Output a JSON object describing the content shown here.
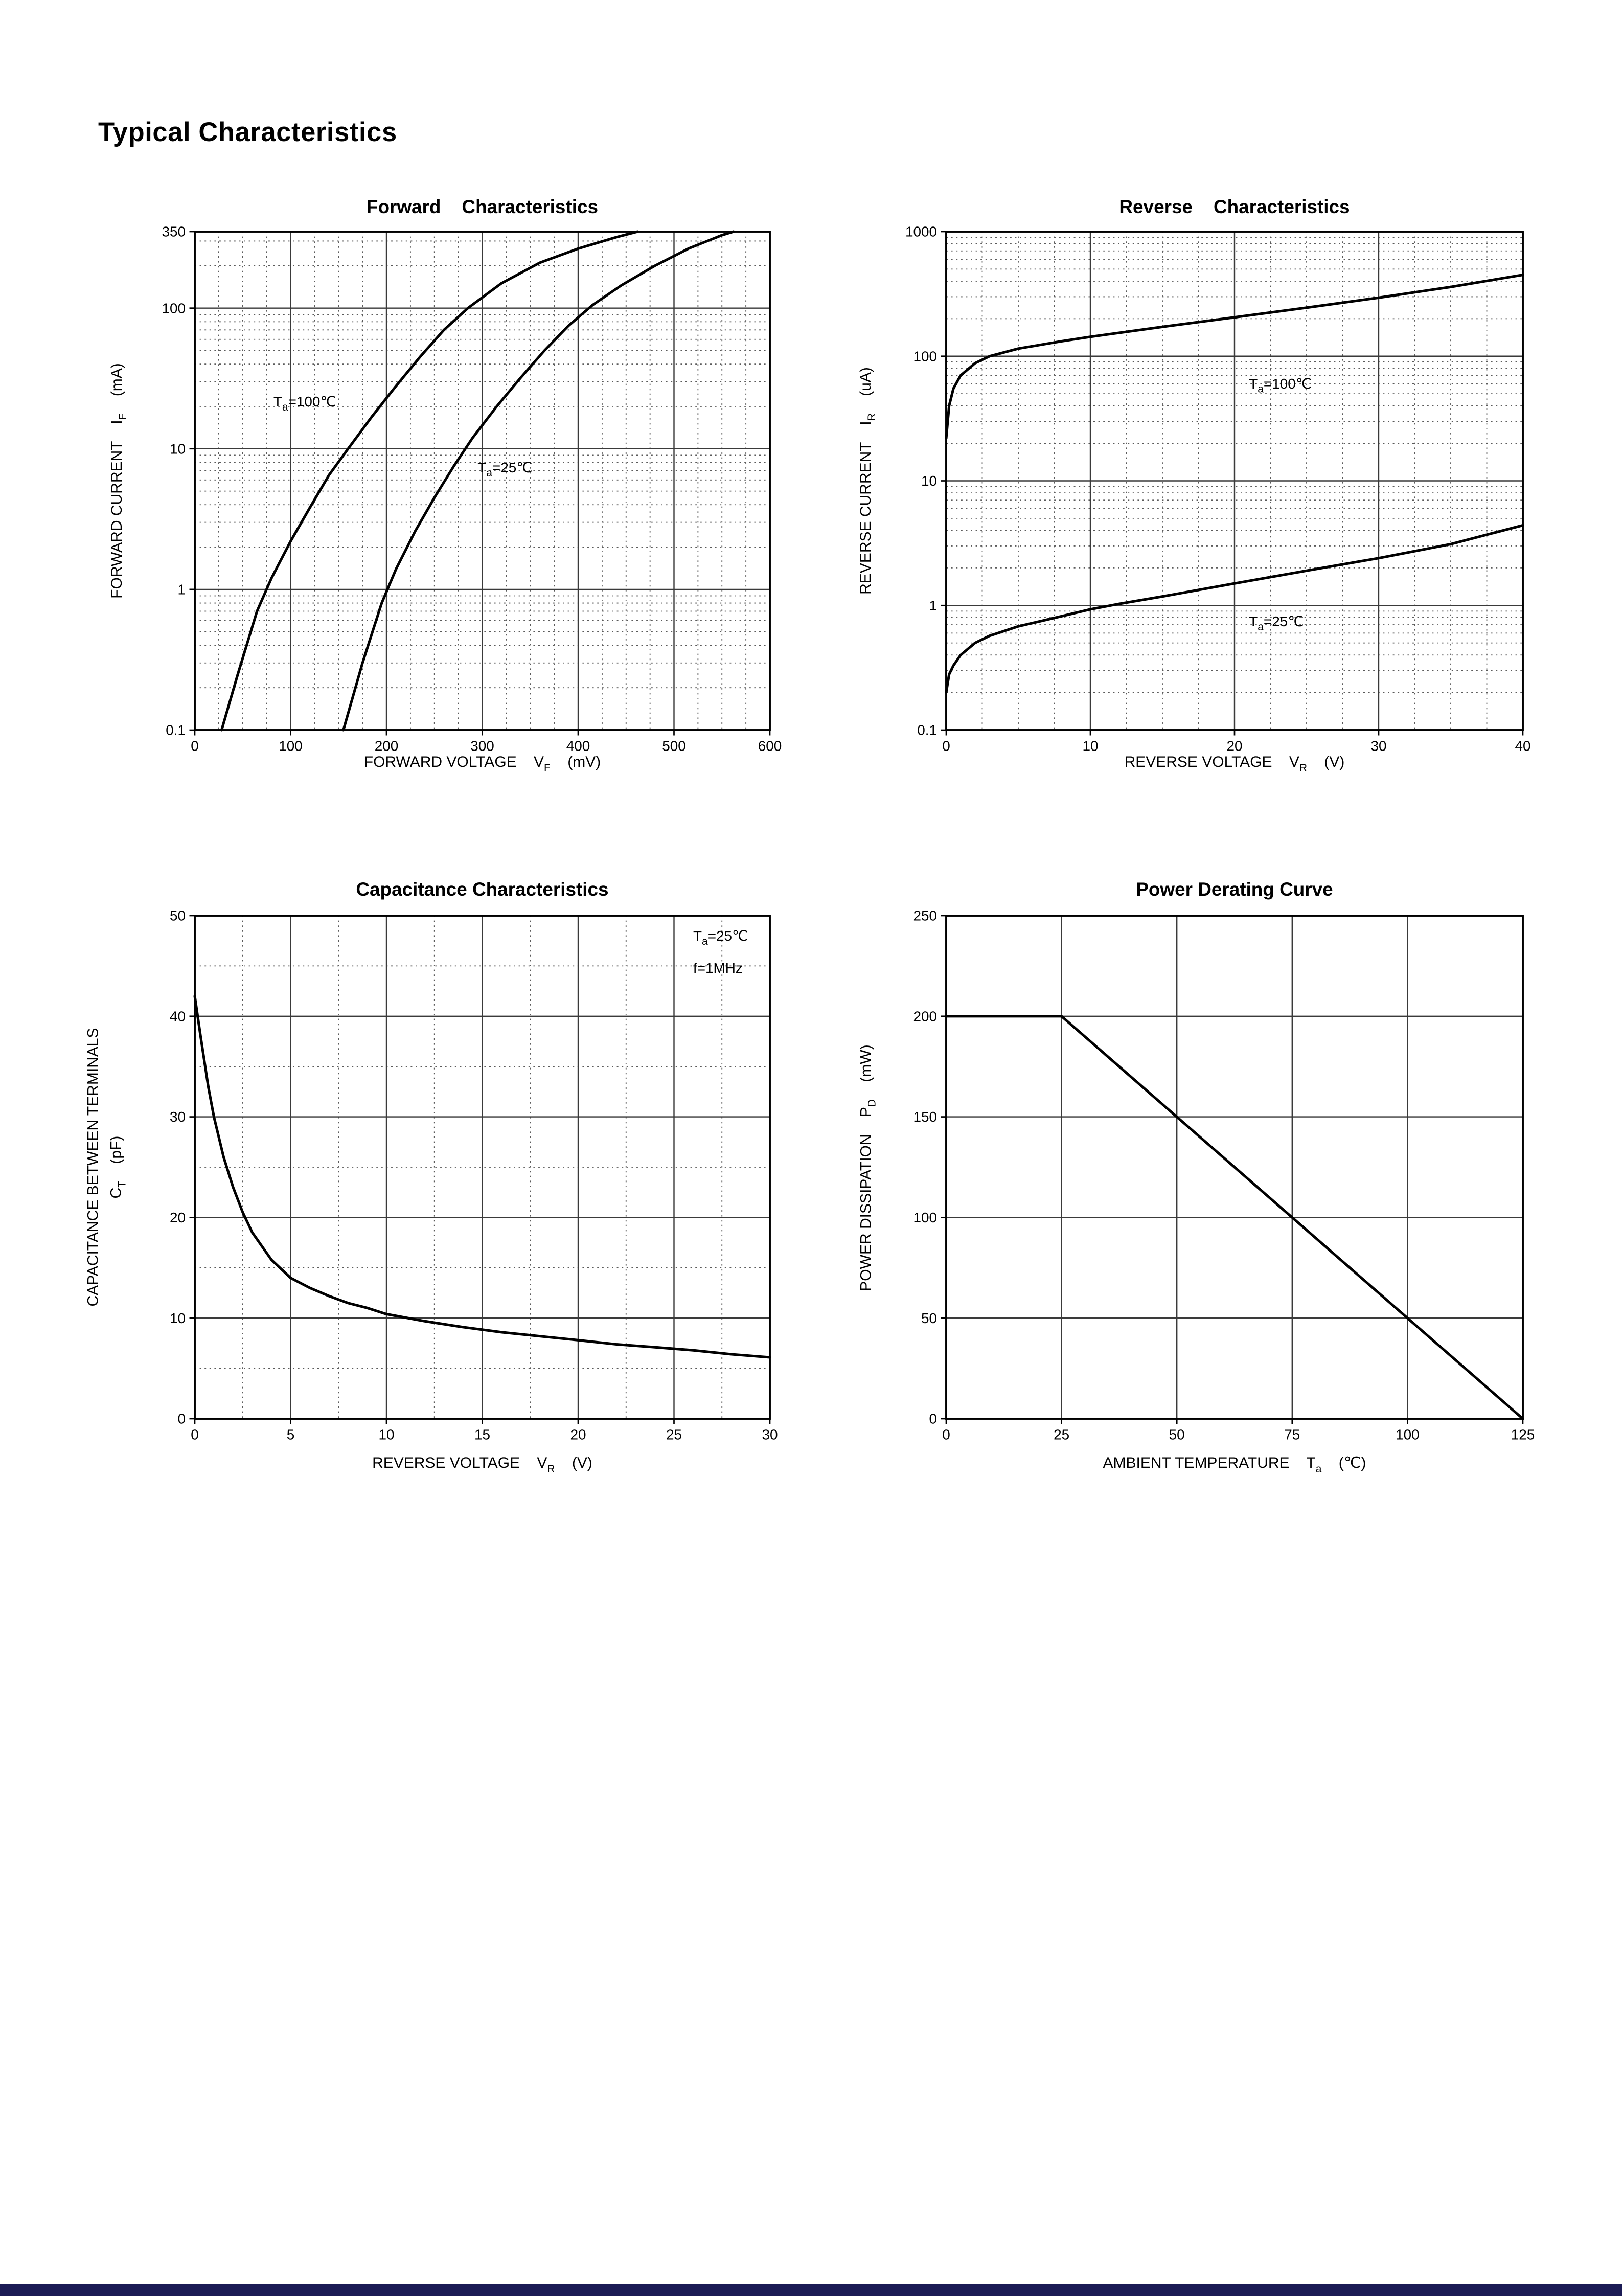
{
  "page": {
    "title": "Typical Characteristics"
  },
  "footer": {
    "bar_color": "#1b1b55"
  },
  "colors": {
    "curve": "#000000",
    "grid_major": "#3a3a3a",
    "grid_minor": "#5a5a5a",
    "border": "#000000"
  },
  "chart_data": [
    {
      "id": "forward-characteristics",
      "type": "line",
      "title": "Forward    Characteristics",
      "x": {
        "min": 0,
        "max": 600,
        "ticks": [
          0,
          100,
          200,
          300,
          400,
          500,
          600
        ],
        "minor_step": 25,
        "scale": "linear"
      },
      "y": {
        "min": 0.1,
        "max": 350,
        "ticks": [
          0.1,
          1,
          10,
          100,
          350
        ],
        "scale": "log"
      },
      "xlabel": [
        {
          "t": "FORWARD VOLTAGE    V"
        },
        {
          "t": "F",
          "sub": true
        },
        {
          "t": "    (mV)"
        }
      ],
      "ylabel": [
        {
          "t": "FORWARD CURRENT    I"
        },
        {
          "t": "F",
          "sub": true
        },
        {
          "t": "    (mA)"
        }
      ],
      "series": [
        {
          "name": "Ta=100C",
          "points": [
            [
              28,
              0.1
            ],
            [
              45,
              0.25
            ],
            [
              65,
              0.7
            ],
            [
              80,
              1.2
            ],
            [
              100,
              2.2
            ],
            [
              120,
              3.8
            ],
            [
              140,
              6.5
            ],
            [
              160,
              10
            ],
            [
              185,
              17
            ],
            [
              210,
              28
            ],
            [
              235,
              45
            ],
            [
              260,
              70
            ],
            [
              285,
              100
            ],
            [
              320,
              150
            ],
            [
              360,
              210
            ],
            [
              400,
              265
            ],
            [
              440,
              320
            ],
            [
              462,
              350
            ]
          ]
        },
        {
          "name": "Ta=25C",
          "points": [
            [
              155,
              0.1
            ],
            [
              175,
              0.3
            ],
            [
              195,
              0.8
            ],
            [
              210,
              1.4
            ],
            [
              230,
              2.6
            ],
            [
              250,
              4.5
            ],
            [
              270,
              7.5
            ],
            [
              290,
              12
            ],
            [
              315,
              20
            ],
            [
              340,
              32
            ],
            [
              365,
              50
            ],
            [
              390,
              75
            ],
            [
              415,
              105
            ],
            [
              445,
              145
            ],
            [
              480,
              200
            ],
            [
              515,
              265
            ],
            [
              550,
              330
            ],
            [
              562,
              350
            ]
          ]
        }
      ],
      "annotations": [
        {
          "segs": [
            {
              "t": "T"
            },
            {
              "t": "a",
              "sub": true
            },
            {
              "t": "=100℃"
            }
          ],
          "x": 82,
          "y": 20
        },
        {
          "segs": [
            {
              "t": "T"
            },
            {
              "t": "a",
              "sub": true
            },
            {
              "t": "=25℃"
            }
          ],
          "x": 295,
          "y": 6.8
        }
      ]
    },
    {
      "id": "reverse-characteristics",
      "type": "line",
      "title": "Reverse    Characteristics",
      "x": {
        "min": 0,
        "max": 40,
        "ticks": [
          0,
          10,
          20,
          30,
          40
        ],
        "minor_step": 2.5,
        "scale": "linear"
      },
      "y": {
        "min": 0.1,
        "max": 1000,
        "ticks": [
          0.1,
          1,
          10,
          100,
          1000
        ],
        "scale": "log"
      },
      "xlabel": [
        {
          "t": "REVERSE VOLTAGE    V"
        },
        {
          "t": "R",
          "sub": true
        },
        {
          "t": "    (V)"
        }
      ],
      "ylabel": [
        {
          "t": "REVERSE CURRENT    I"
        },
        {
          "t": "R",
          "sub": true
        },
        {
          "t": "    (uA)"
        }
      ],
      "series": [
        {
          "name": "Ta=100C",
          "points": [
            [
              0,
              22
            ],
            [
              0.2,
              40
            ],
            [
              0.5,
              55
            ],
            [
              1,
              70
            ],
            [
              2,
              88
            ],
            [
              3,
              100
            ],
            [
              5,
              115
            ],
            [
              8,
              132
            ],
            [
              10,
              143
            ],
            [
              15,
              172
            ],
            [
              20,
              205
            ],
            [
              25,
              245
            ],
            [
              30,
              295
            ],
            [
              35,
              360
            ],
            [
              40,
              450
            ]
          ]
        },
        {
          "name": "Ta=25C",
          "points": [
            [
              0,
              0.2
            ],
            [
              0.2,
              0.28
            ],
            [
              0.5,
              0.33
            ],
            [
              1,
              0.4
            ],
            [
              2,
              0.5
            ],
            [
              3,
              0.57
            ],
            [
              5,
              0.68
            ],
            [
              8,
              0.82
            ],
            [
              10,
              0.93
            ],
            [
              12,
              1.03
            ],
            [
              15,
              1.18
            ],
            [
              20,
              1.5
            ],
            [
              25,
              1.9
            ],
            [
              30,
              2.4
            ],
            [
              35,
              3.1
            ],
            [
              40,
              4.4
            ]
          ]
        }
      ],
      "annotations": [
        {
          "segs": [
            {
              "t": "T"
            },
            {
              "t": "a",
              "sub": true
            },
            {
              "t": "=100℃"
            }
          ],
          "x": 21,
          "y": 55
        },
        {
          "segs": [
            {
              "t": "T"
            },
            {
              "t": "a",
              "sub": true
            },
            {
              "t": "=25℃"
            }
          ],
          "x": 21,
          "y": 0.68
        }
      ]
    },
    {
      "id": "capacitance-characteristics",
      "type": "line",
      "title": "Capacitance Characteristics",
      "x": {
        "min": 0,
        "max": 30,
        "ticks": [
          0,
          5,
          10,
          15,
          20,
          25,
          30
        ],
        "minor_step": 2.5,
        "scale": "linear"
      },
      "y": {
        "min": 0,
        "max": 50,
        "ticks": [
          0,
          10,
          20,
          30,
          40,
          50
        ],
        "minor_step": 5,
        "scale": "linear"
      },
      "xlabel": [
        {
          "t": "REVERSE VOLTAGE    V"
        },
        {
          "t": "R",
          "sub": true
        },
        {
          "t": "    (V)"
        }
      ],
      "ylabel": [
        [
          {
            "t": "CAPACITANCE BETWEEN TERMINALS"
          }
        ],
        [
          {
            "t": "C"
          },
          {
            "t": "T",
            "sub": true
          },
          {
            "t": "    (pF)"
          }
        ]
      ],
      "series": [
        {
          "name": "CT",
          "points": [
            [
              0,
              42
            ],
            [
              0.3,
              38
            ],
            [
              0.7,
              33
            ],
            [
              1,
              30
            ],
            [
              1.5,
              26
            ],
            [
              2,
              23
            ],
            [
              2.5,
              20.5
            ],
            [
              3,
              18.5
            ],
            [
              4,
              15.8
            ],
            [
              5,
              14
            ],
            [
              6,
              13
            ],
            [
              7,
              12.2
            ],
            [
              8,
              11.5
            ],
            [
              9,
              11
            ],
            [
              10,
              10.4
            ],
            [
              12,
              9.7
            ],
            [
              14,
              9.1
            ],
            [
              16,
              8.6
            ],
            [
              18,
              8.2
            ],
            [
              20,
              7.8
            ],
            [
              22,
              7.4
            ],
            [
              24,
              7.1
            ],
            [
              26,
              6.8
            ],
            [
              28,
              6.4
            ],
            [
              30,
              6.1
            ]
          ]
        }
      ],
      "annotations": [
        {
          "segs": [
            {
              "t": "T"
            },
            {
              "t": "a",
              "sub": true
            },
            {
              "t": "=25℃"
            }
          ],
          "x": 26,
          "y": 47.5
        },
        {
          "segs": [
            {
              "t": "f=1MHz"
            }
          ],
          "x": 26,
          "y": 44.3
        }
      ]
    },
    {
      "id": "power-derating-curve",
      "type": "line",
      "title": "Power Derating Curve",
      "x": {
        "min": 0,
        "max": 125,
        "ticks": [
          0,
          25,
          50,
          75,
          100,
          125
        ],
        "scale": "linear"
      },
      "y": {
        "min": 0,
        "max": 250,
        "ticks": [
          0,
          50,
          100,
          150,
          200,
          250
        ],
        "scale": "linear"
      },
      "xlabel": [
        {
          "t": "AMBIENT TEMPERATURE    T"
        },
        {
          "t": "a",
          "sub": true
        },
        {
          "t": "    (℃)"
        }
      ],
      "ylabel": [
        {
          "t": "POWER DISSIPATION    P"
        },
        {
          "t": "D",
          "sub": true
        },
        {
          "t": "    (mW)"
        }
      ],
      "series": [
        {
          "name": "PD",
          "points": [
            [
              0,
              200
            ],
            [
              25,
              200
            ],
            [
              125,
              0
            ]
          ]
        }
      ],
      "annotations": []
    }
  ]
}
